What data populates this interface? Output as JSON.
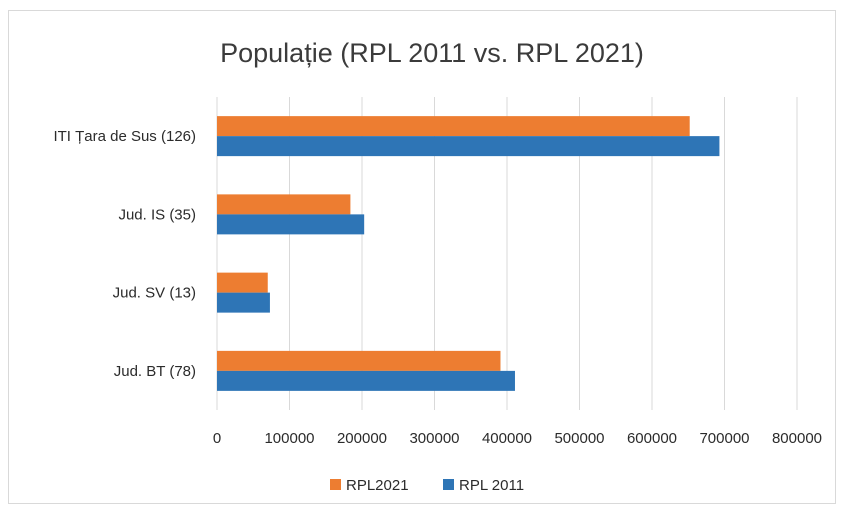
{
  "chart_data": {
    "type": "bar",
    "orientation": "horizontal",
    "title": "Populație (RPL 2011 vs. RPL 2021)",
    "categories": [
      "ITI Țara de Sus (126)",
      "Jud. IS (35)",
      "Jud. SV (13)",
      "Jud. BT (78)"
    ],
    "series": [
      {
        "name": "RPL2021",
        "color": "#ED7D31",
        "values": [
          652000,
          184000,
          70000,
          391000
        ]
      },
      {
        "name": "RPL 2011",
        "color": "#2E75B6",
        "values": [
          693000,
          203000,
          73000,
          411000
        ]
      }
    ],
    "xlim": [
      0,
      800000
    ],
    "xticks": [
      "0",
      "100000",
      "200000",
      "300000",
      "400000",
      "500000",
      "600000",
      "700000",
      "800000"
    ],
    "grid": true,
    "legend": "bottom"
  }
}
